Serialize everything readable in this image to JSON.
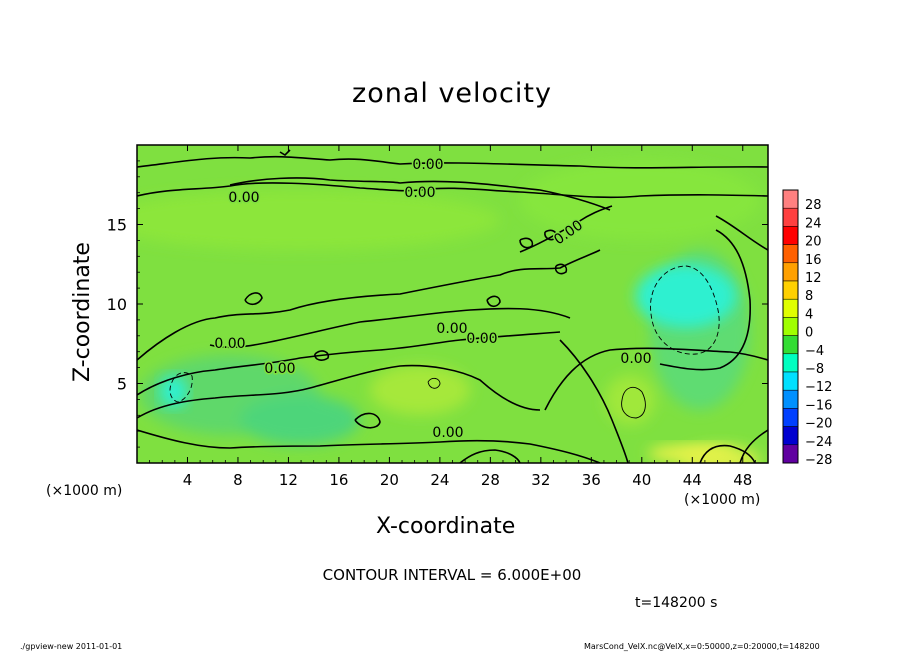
{
  "chart_data": {
    "type": "heatmap",
    "title": "zonal velocity",
    "xlabel": "X-coordinate",
    "ylabel": "Z-coordinate",
    "x_unit": "(×1000 m)",
    "xlim": [
      0,
      50
    ],
    "ylim": [
      0,
      20
    ],
    "x_ticks": [
      4,
      8,
      12,
      16,
      20,
      24,
      28,
      32,
      36,
      40,
      44,
      48
    ],
    "y_ticks": [
      5,
      10,
      15
    ],
    "colorbar": {
      "levels": [
        -28,
        -24,
        -20,
        -16,
        -12,
        -8,
        -4,
        0,
        4,
        8,
        12,
        16,
        20,
        24,
        28
      ],
      "labels": [
        "28",
        "24",
        "20",
        "16",
        "12",
        "8",
        "4",
        "0",
        "−4",
        "−8",
        "−12",
        "−16",
        "−20",
        "−24",
        "−28"
      ],
      "colors": [
        "#ff8080",
        "#ff4040",
        "#ff0000",
        "#ff6000",
        "#ffa000",
        "#ffd000",
        "#e0ff00",
        "#a0ff00",
        "#33dd33",
        "#00ffc0",
        "#00e0ff",
        "#0090ff",
        "#0040ff",
        "#0000d0",
        "#6000a0"
      ]
    },
    "contour_labels": [
      "0.00",
      "0.00",
      "0.00",
      "0.00",
      "0.00",
      "0.00",
      "0.00",
      "0.00",
      "0.00",
      "0.00"
    ],
    "contour_interval_text": "CONTOUR INTERVAL = 6.000E+00",
    "time_text": "t=148200 s",
    "regions": [
      {
        "name": "negative-core-east",
        "x": [
          39.5,
          47.5
        ],
        "z": [
          8.5,
          12.5
        ],
        "value": -6
      },
      {
        "name": "negative-core-west",
        "x": [
          1.8,
          4.0
        ],
        "z": [
          3.5,
          5.5
        ],
        "value": -6
      },
      {
        "name": "positive-core-south",
        "x": [
          40.5,
          47.5
        ],
        "z": [
          0,
          1.2
        ],
        "value": 6
      }
    ]
  },
  "footer": {
    "left": "./gpview-new   2011-01-01",
    "right": "MarsCond_VelX.nc@VelX,x=0:50000,z=0:20000,t=148200"
  }
}
